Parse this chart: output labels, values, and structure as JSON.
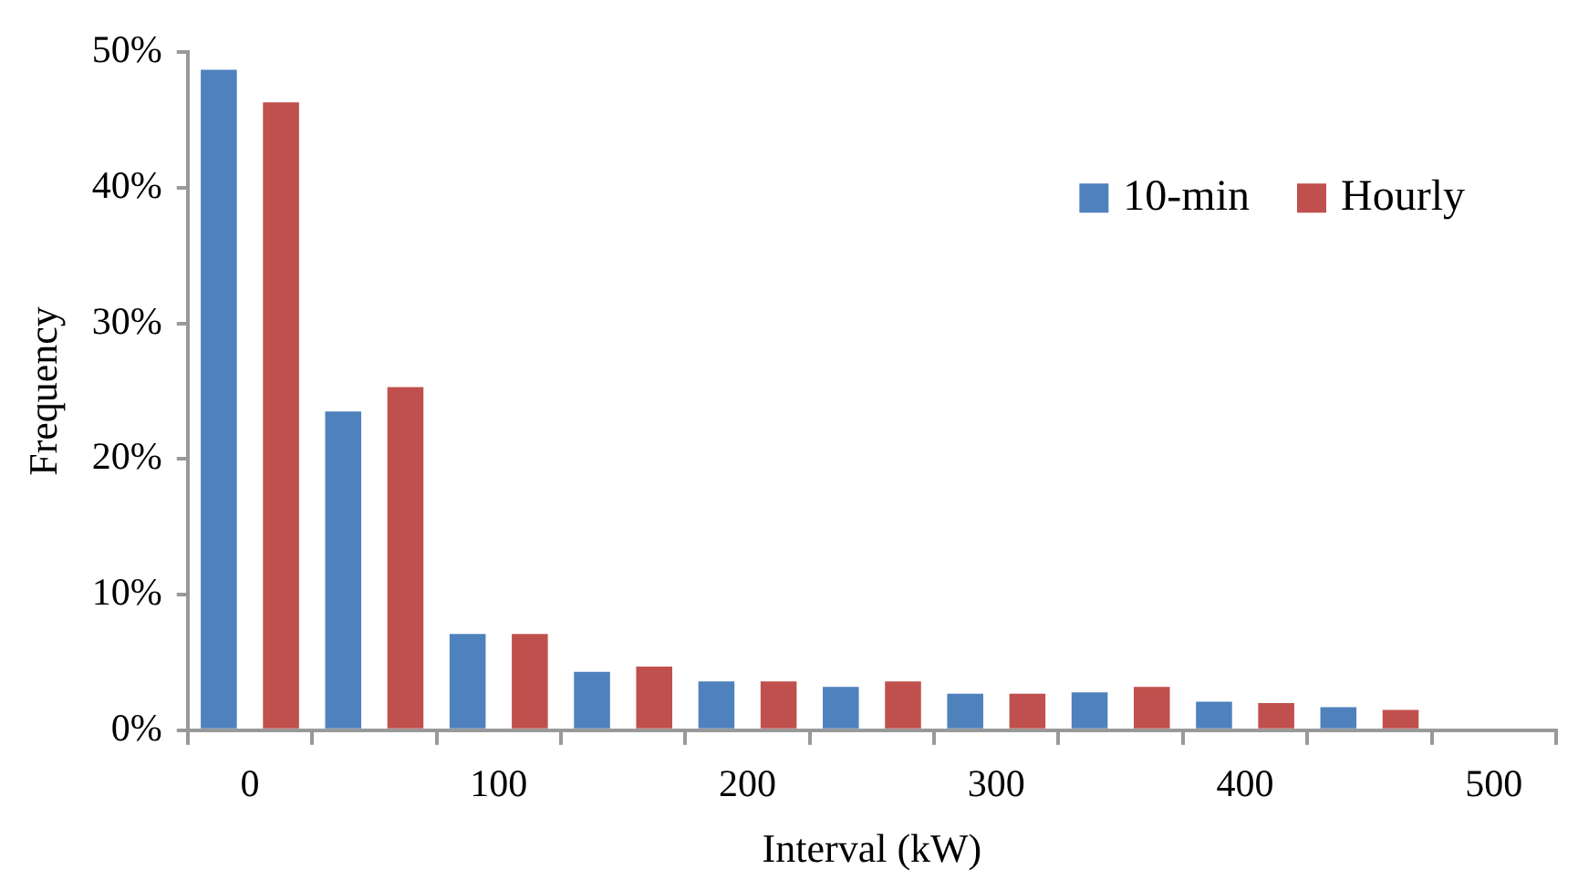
{
  "chart_data": {
    "type": "bar",
    "xlabel": "Interval (kW)",
    "ylabel": "Frequency",
    "categories": [
      "0",
      null,
      "100",
      null,
      "200",
      null,
      "300",
      null,
      "400",
      null,
      "500"
    ],
    "series": [
      {
        "name": "10-min",
        "color": "#4f81bd",
        "values": [
          48.7,
          23.5,
          7.1,
          4.3,
          3.6,
          3.2,
          2.7,
          2.8,
          2.1,
          1.7,
          null
        ]
      },
      {
        "name": "Hourly",
        "color": "#c0504d",
        "values": [
          46.3,
          25.3,
          7.1,
          4.7,
          3.6,
          3.6,
          2.7,
          3.2,
          2.0,
          1.5,
          null
        ]
      }
    ],
    "ylim": [
      0,
      50
    ],
    "yticks": [
      {
        "value": 0,
        "label": "0%"
      },
      {
        "value": 10,
        "label": "10%"
      },
      {
        "value": 20,
        "label": "20%"
      },
      {
        "value": 30,
        "label": "30%"
      },
      {
        "value": 40,
        "label": "40%"
      },
      {
        "value": 50,
        "label": "50%"
      }
    ],
    "grid": false,
    "legend": "top right"
  }
}
